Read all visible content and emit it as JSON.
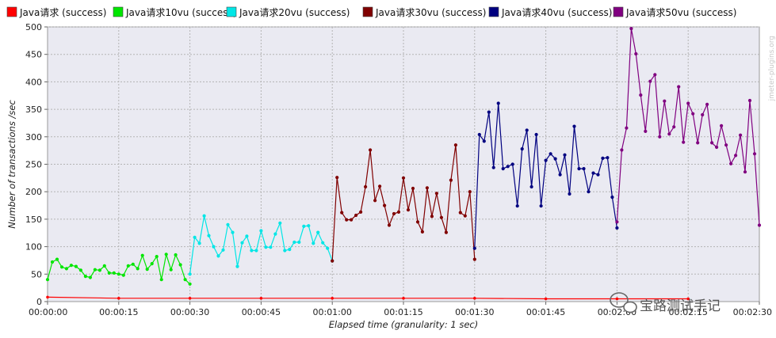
{
  "watermark": "jmeter-plugins.org",
  "brand_text": "宝路测试手记",
  "chart_data": {
    "type": "line",
    "xlabel": "Elapsed time (granularity: 1 sec)",
    "ylabel": "Number of transactions /sec",
    "xlim": [
      0,
      150
    ],
    "ylim": [
      0,
      500
    ],
    "yticks": [
      0,
      50,
      100,
      150,
      200,
      250,
      300,
      350,
      400,
      450,
      500
    ],
    "xticks": [
      {
        "v": 0,
        "label": "00:00:00"
      },
      {
        "v": 15,
        "label": "00:00:15"
      },
      {
        "v": 30,
        "label": "00:00:30"
      },
      {
        "v": 45,
        "label": "00:00:45"
      },
      {
        "v": 60,
        "label": "00:01:00"
      },
      {
        "v": 75,
        "label": "00:01:15"
      },
      {
        "v": 90,
        "label": "00:01:30"
      },
      {
        "v": 105,
        "label": "00:01:45"
      },
      {
        "v": 120,
        "label": "00:02:00"
      },
      {
        "v": 135,
        "label": "00:02:15"
      },
      {
        "v": 150,
        "label": "00:02:30"
      }
    ],
    "grid": true,
    "legend_position": "top",
    "series": [
      {
        "name": "Java请求 (success)",
        "color": "#ff0000",
        "marker": false,
        "x0": 0,
        "values": [
          8,
          6,
          6,
          6,
          6,
          6,
          6,
          5,
          5,
          5
        ]
      },
      {
        "name": "Java请求10vu (success)",
        "color": "#00e600",
        "marker": true,
        "x0": 0,
        "values": [
          40,
          72,
          77,
          63,
          60,
          66,
          64,
          57,
          46,
          44,
          58,
          57,
          65,
          52,
          52,
          50,
          48,
          65,
          68,
          60,
          84,
          59,
          69,
          82,
          40,
          86,
          58,
          85,
          67,
          40,
          32
        ]
      },
      {
        "name": "Java请求20vu (success)",
        "color": "#00e6e6",
        "marker": true,
        "x0": 30,
        "values": [
          50,
          117,
          106,
          156,
          120,
          100,
          83,
          94,
          140,
          126,
          64,
          107,
          119,
          93,
          93,
          129,
          99,
          99,
          123,
          143,
          93,
          95,
          108,
          108,
          137,
          138,
          106,
          126,
          107,
          97,
          74
        ]
      },
      {
        "name": "Java请求30vu (success)",
        "color": "#800000",
        "marker": true,
        "x0": 60,
        "values": [
          74,
          226,
          162,
          149,
          149,
          157,
          163,
          209,
          276,
          184,
          210,
          175,
          139,
          160,
          163,
          225,
          167,
          206,
          145,
          127,
          207,
          155,
          197,
          153,
          126,
          221,
          285,
          162,
          156,
          200,
          77
        ]
      },
      {
        "name": "Java请求40vu (success)",
        "color": "#000080",
        "marker": true,
        "x0": 90,
        "values": [
          97,
          304,
          292,
          345,
          244,
          361,
          242,
          246,
          250,
          174,
          278,
          312,
          209,
          304,
          174,
          257,
          269,
          260,
          231,
          267,
          196,
          319,
          242,
          242,
          200,
          234,
          231,
          261,
          262,
          190,
          134
        ]
      },
      {
        "name": "Java请求50vu (success)",
        "color": "#800080",
        "marker": true,
        "x0": 120,
        "values": [
          145,
          276,
          316,
          497,
          451,
          376,
          310,
          401,
          413,
          300,
          365,
          305,
          318,
          391,
          290,
          361,
          342,
          289,
          340,
          359,
          289,
          281,
          320,
          285,
          251,
          266,
          303,
          236,
          366,
          269,
          139
        ]
      }
    ]
  }
}
